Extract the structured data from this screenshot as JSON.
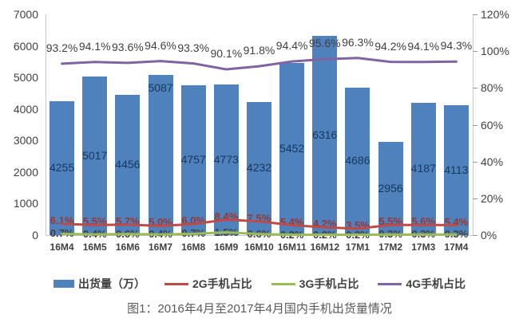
{
  "chart_data": {
    "type": "bar+line-combo",
    "title": "",
    "caption": "图1：2016年4月至2017年4月国内手机出货量情况",
    "categories": [
      "16M4",
      "16M5",
      "16M6",
      "16M7",
      "16M8",
      "16M9",
      "16M10",
      "16M11",
      "16M12",
      "17M1",
      "17M2",
      "17M3",
      "17M4"
    ],
    "series": [
      {
        "name": "出货量（万）",
        "type": "bar",
        "axis": "left",
        "color": "#4F81BD",
        "label_color": "#17375E",
        "values": [
          4255,
          5017,
          4456,
          5087,
          4757,
          4773,
          4232,
          5452,
          6316,
          4686,
          2956,
          4187,
          4113
        ],
        "labels": [
          "4255",
          "5017",
          "4456",
          "5087",
          "4757",
          "4773",
          "4232",
          "5452",
          "6316",
          "4686",
          "2956",
          "4187",
          "4113"
        ],
        "label_positions": [
          "center",
          "center",
          "center",
          "top",
          "center",
          "center",
          "center",
          "center",
          "center",
          "center",
          "center",
          "center",
          "center"
        ]
      },
      {
        "name": "2G手机占比",
        "type": "line",
        "axis": "right",
        "color": "#BE4B48",
        "label_color": "#953735",
        "values": [
          6.1,
          5.5,
          5.7,
          5.0,
          6.0,
          8.4,
          7.5,
          5.4,
          4.2,
          3.5,
          5.5,
          5.6,
          5.4
        ],
        "labels": [
          "6.1%",
          "5.5%",
          "5.7%",
          "5.0%",
          "6.0%",
          "8.4%",
          "7.5%",
          "5.4%",
          "4.2%",
          "3.5%",
          "5.5%",
          "5.6%",
          "5.4%"
        ]
      },
      {
        "name": "3G手机占比",
        "type": "line",
        "axis": "right",
        "color": "#9BBB59",
        "label_color": "#404040",
        "values": [
          0.7,
          0.4,
          0.6,
          0.4,
          0.7,
          1.5,
          0.6,
          0.2,
          0.2,
          0.2,
          0.3,
          0.3,
          0.3
        ],
        "labels": [
          "0.7%",
          "0.4%",
          "0.6%",
          "0.4%",
          "0.7%",
          "1.5%",
          "0.6%",
          "0.2%",
          "0.2%",
          "0.2%",
          "0.3%",
          "0.3%",
          "0.3%"
        ]
      },
      {
        "name": "4G手机占比",
        "type": "line",
        "axis": "right",
        "color": "#8064A2",
        "label_color": "#404040",
        "values": [
          93.2,
          94.1,
          93.6,
          94.6,
          93.3,
          90.1,
          91.8,
          94.4,
          95.6,
          96.3,
          94.2,
          94.1,
          94.3
        ],
        "labels": [
          "93.2%",
          "94.1%",
          "93.6%",
          "94.6%",
          "93.3%",
          "90.1%",
          "91.8%",
          "94.4%",
          "95.6%",
          "96.3%",
          "94.2%",
          "94.1%",
          "94.3%"
        ]
      }
    ],
    "left_axis": {
      "min": 0,
      "max": 7000,
      "step": 1000,
      "tick_labels": [
        "7000",
        "6000",
        "5000",
        "4000",
        "3000",
        "2000",
        "1000",
        "0"
      ]
    },
    "right_axis": {
      "min": 0,
      "max": 120,
      "step": 20,
      "tick_labels": [
        "120%",
        "100%",
        "80%",
        "60%",
        "40%",
        "20%",
        "0%"
      ]
    },
    "grid": "off",
    "legend_position": "bottom"
  },
  "legend": {
    "items": [
      {
        "label": "出货量（万）",
        "swatch": "rect",
        "color": "#4F81BD"
      },
      {
        "label": "2G手机占比",
        "swatch": "line",
        "color": "#BE4B48"
      },
      {
        "label": "3G手机占比",
        "swatch": "line",
        "color": "#9BBB59"
      },
      {
        "label": "4G手机占比",
        "swatch": "line",
        "color": "#8064A2"
      }
    ]
  }
}
